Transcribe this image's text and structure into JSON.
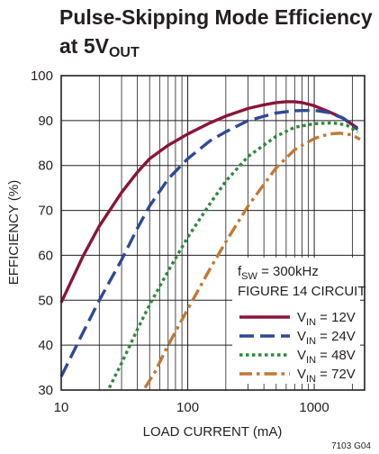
{
  "title_line1": "Pulse-Skipping Mode Efficiency",
  "title_line2_prefix": "at 5V",
  "title_line2_sub": "OUT",
  "figure_code": "7103 G04",
  "colors": {
    "ink": "#231f20",
    "vin_12V": "#8a1538",
    "vin_24V": "#2e4a96",
    "vin_48V": "#2f8a3c",
    "vin_72V": "#c07a35"
  },
  "chart_data": {
    "type": "line",
    "xscale": "log",
    "xlim": [
      10,
      2500
    ],
    "ylim": [
      30,
      100
    ],
    "xticks": [
      10,
      100,
      1000
    ],
    "yticks": [
      30,
      40,
      50,
      60,
      70,
      80,
      90,
      100
    ],
    "xlabel": "LOAD CURRENT (mA)",
    "ylabel": "EFFICIENCY (%)",
    "grid": true,
    "legend_position": "bottom-right",
    "legend_header": [
      {
        "main": "f",
        "sub": "SW",
        "tail": " = 300kHz"
      },
      {
        "main": "FIGURE 14 CIRCUIT",
        "sub": "",
        "tail": ""
      }
    ],
    "series": [
      {
        "name": "V_IN = 12V",
        "label_main": "V",
        "label_sub": "IN",
        "label_tail": " = 12V",
        "color_key": "vin_12V",
        "style": "solid",
        "x": [
          10,
          15,
          20,
          30,
          40,
          50,
          70,
          100,
          150,
          200,
          300,
          400,
          500,
          600,
          700,
          800,
          1000,
          1300,
          1700,
          2200
        ],
        "y": [
          49.5,
          60,
          66.5,
          74,
          78.5,
          81.5,
          84.5,
          87,
          89.5,
          91,
          92.7,
          93.5,
          94,
          94.2,
          94.2,
          94,
          93.3,
          92,
          90.5,
          88.3
        ]
      },
      {
        "name": "V_IN = 24V",
        "label_main": "V",
        "label_sub": "IN",
        "label_tail": " = 24V",
        "color_key": "vin_24V",
        "style": "dashed",
        "x": [
          10,
          15,
          20,
          30,
          40,
          50,
          70,
          100,
          150,
          200,
          300,
          500,
          700,
          1000,
          1300,
          1700,
          2200
        ],
        "y": [
          33,
          43,
          50,
          59,
          66,
          71,
          77,
          81.5,
          85.5,
          87.5,
          90,
          91.7,
          92.2,
          92.3,
          91.8,
          90.5,
          88
        ]
      },
      {
        "name": "V_IN = 48V",
        "label_main": "V",
        "label_sub": "IN",
        "label_tail": " = 48V",
        "color_key": "vin_48V",
        "style": "dotted",
        "x": [
          24,
          30,
          40,
          50,
          70,
          100,
          150,
          200,
          300,
          500,
          700,
          1000,
          1400,
          1800,
          2200
        ],
        "y": [
          30.5,
          36,
          43.5,
          49,
          56.5,
          64,
          71.5,
          76.5,
          82,
          86.5,
          88.5,
          89.3,
          89.5,
          89,
          87.5
        ]
      },
      {
        "name": "V_IN = 72V",
        "label_main": "V",
        "label_sub": "IN",
        "label_tail": " = 72V",
        "color_key": "vin_72V",
        "style": "dashdot",
        "x": [
          46,
          55,
          70,
          100,
          150,
          200,
          300,
          500,
          700,
          1000,
          1300,
          1600,
          2000,
          2300
        ],
        "y": [
          30.5,
          34,
          40,
          48,
          57,
          63,
          71,
          79.5,
          83.5,
          86,
          87,
          87.2,
          86.8,
          85.8
        ]
      }
    ]
  }
}
